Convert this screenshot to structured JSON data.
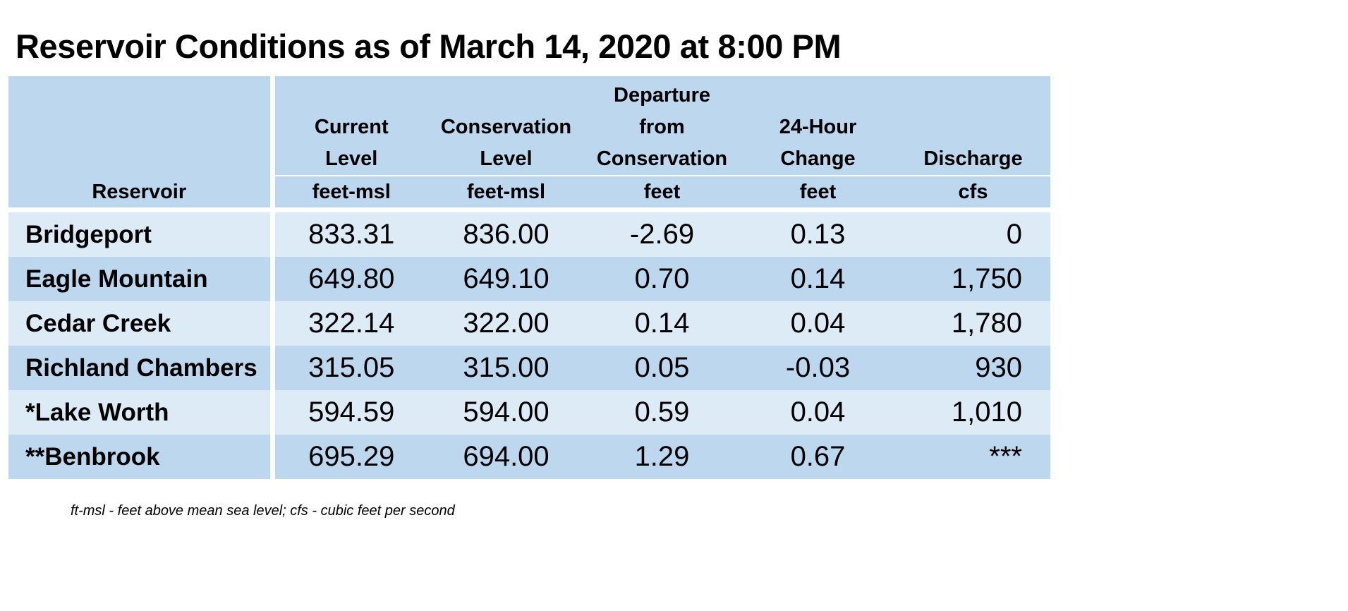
{
  "title": "Reservoir Conditions as of March 14, 2020 at 8:00 PM",
  "table": {
    "header": {
      "reservoir": "Reservoir",
      "columns": [
        {
          "lines": [
            "Current",
            "Level"
          ],
          "unit": "feet-msl"
        },
        {
          "lines": [
            "Conservation",
            "Level"
          ],
          "unit": "feet-msl"
        },
        {
          "lines": [
            "Departure",
            "from",
            "Conservation"
          ],
          "unit": "feet"
        },
        {
          "lines": [
            "24-Hour",
            "Change"
          ],
          "unit": "feet"
        },
        {
          "lines": [
            "Discharge"
          ],
          "unit": "cfs"
        }
      ]
    },
    "rows": [
      {
        "name": "Bridgeport",
        "current": "833.31",
        "conservation": "836.00",
        "departure": "-2.69",
        "change": "0.13",
        "discharge": "0"
      },
      {
        "name": "Eagle Mountain",
        "current": "649.80",
        "conservation": "649.10",
        "departure": "0.70",
        "change": "0.14",
        "discharge": "1,750"
      },
      {
        "name": "Cedar Creek",
        "current": "322.14",
        "conservation": "322.00",
        "departure": "0.14",
        "change": "0.04",
        "discharge": "1,780"
      },
      {
        "name": "Richland Chambers",
        "current": "315.05",
        "conservation": "315.00",
        "departure": "0.05",
        "change": "-0.03",
        "discharge": "930"
      },
      {
        "name": "*Lake Worth",
        "current": "594.59",
        "conservation": "594.00",
        "departure": "0.59",
        "change": "0.04",
        "discharge": "1,010"
      },
      {
        "name": "**Benbrook",
        "current": "695.29",
        "conservation": "694.00",
        "departure": "1.29",
        "change": "0.67",
        "discharge": "***"
      }
    ]
  },
  "footnote": "ft-msl - feet above mean sea level; cfs - cubic feet per second",
  "colors": {
    "header_fill": "#bdd7ee",
    "row_light": "#ddebf7",
    "row_dark": "#bdd7ee"
  }
}
